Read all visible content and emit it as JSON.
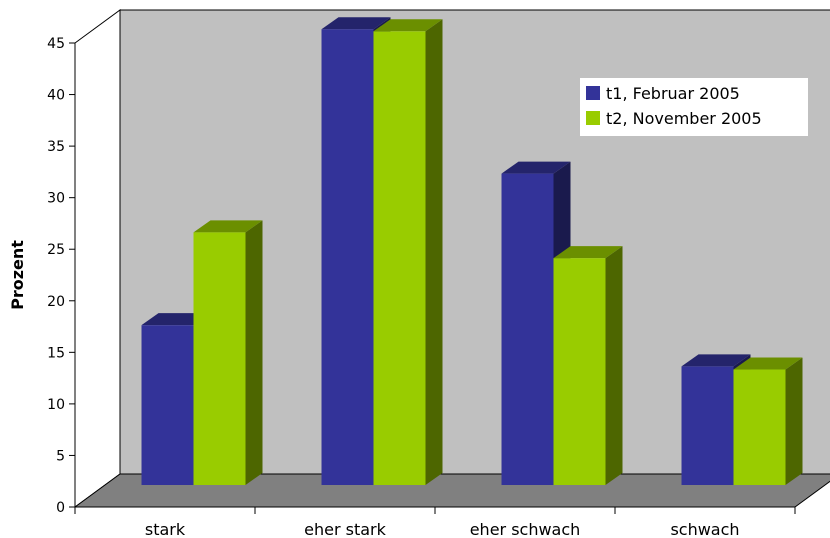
{
  "chart_data": {
    "type": "bar",
    "title": "",
    "xlabel": "",
    "ylabel": "Prozent",
    "ylim": [
      0,
      45
    ],
    "yticks": [
      0,
      5,
      10,
      15,
      20,
      25,
      30,
      35,
      40,
      45
    ],
    "grid": false,
    "legend_position": "top-right",
    "categories": [
      "stark",
      "eher stark",
      "eher schwach",
      "schwach"
    ],
    "series": [
      {
        "name": "t1, Februar 2005",
        "values": [
          15.5,
          44.2,
          30.2,
          11.5
        ],
        "color": "#333399"
      },
      {
        "name": "t2, November 2005",
        "values": [
          24.5,
          44.0,
          22.0,
          11.2
        ],
        "color": "#99cc00"
      }
    ],
    "colors": {
      "wall": "#c0c0c0",
      "floor": "#808080",
      "background": "#ffffff"
    }
  }
}
